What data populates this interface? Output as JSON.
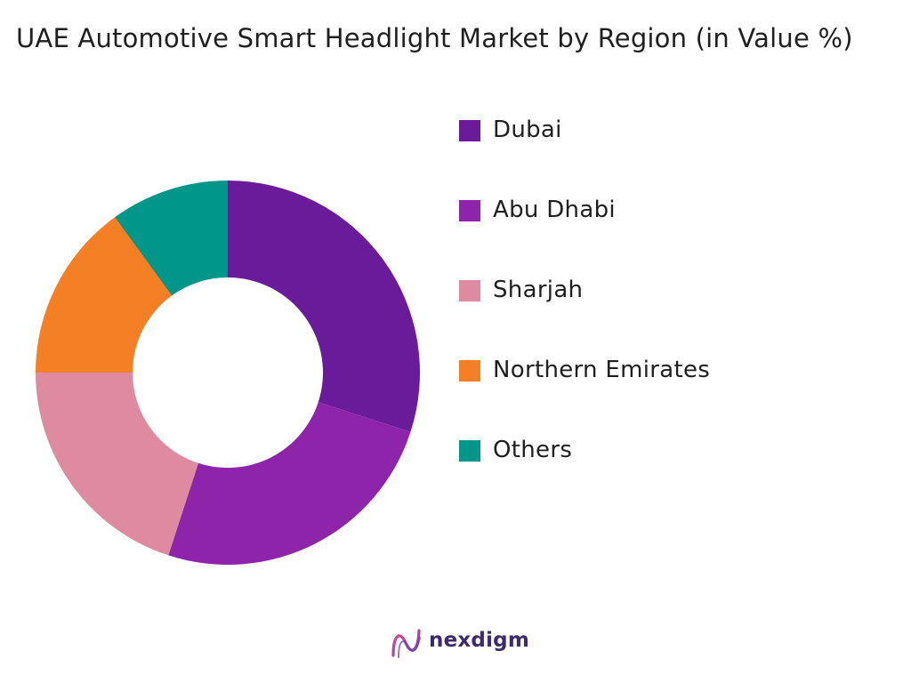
{
  "chart_data": {
    "type": "pie",
    "title": "UAE Automotive Smart Headlight Market by Region (in Value %)",
    "donut": true,
    "categories": [
      "Dubai",
      "Abu Dhabi",
      "Sharjah",
      "Northern Emirates",
      "Others"
    ],
    "values": [
      30,
      25,
      20,
      15,
      10
    ],
    "colors": [
      "#6a1b9a",
      "#8e24aa",
      "#de8aa0",
      "#f47f24",
      "#00968a"
    ],
    "legend_position": "right"
  },
  "brand": {
    "name": "nexdigm",
    "icon": "nexdigm-logo-icon"
  }
}
